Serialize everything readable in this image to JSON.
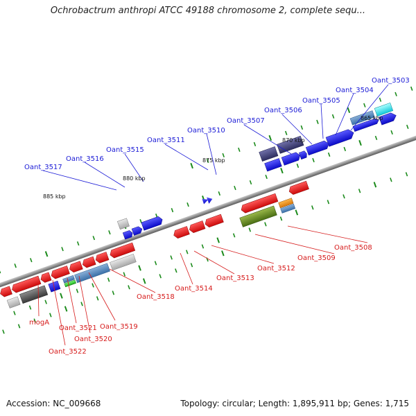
{
  "header": {
    "title": "Ochrobactrum anthropi ATCC 49188 chromosome 2, complete sequ..."
  },
  "footer": {
    "accession": "Accession: NC_009668",
    "summary": "Topology: circular; Length: 1,895,911 bp; Genes: 1,715"
  },
  "kbp_marks": [
    "865 kbp",
    "870 kbp",
    "875 kbp",
    "880 kbp",
    "885 kbp"
  ],
  "top_labels": [
    "Oant_3503",
    "Oant_3504",
    "Oant_3505",
    "Oant_3506",
    "Oant_3507",
    "Oant_3510",
    "Oant_3511",
    "Oant_3515",
    "Oant_3516",
    "Oant_3517"
  ],
  "bottom_labels": [
    "Oant_3508",
    "Oant_3509",
    "Oant_3512",
    "Oant_3513",
    "Oant_3514",
    "Oant_3518",
    "Oant_3519",
    "Oant_3520",
    "Oant_3521",
    "mogA",
    "Oant_3522"
  ],
  "colors": {
    "forward_gene": "#1010e0",
    "reverse_gene": "#e01010",
    "backbone": "#8a8a8a"
  }
}
